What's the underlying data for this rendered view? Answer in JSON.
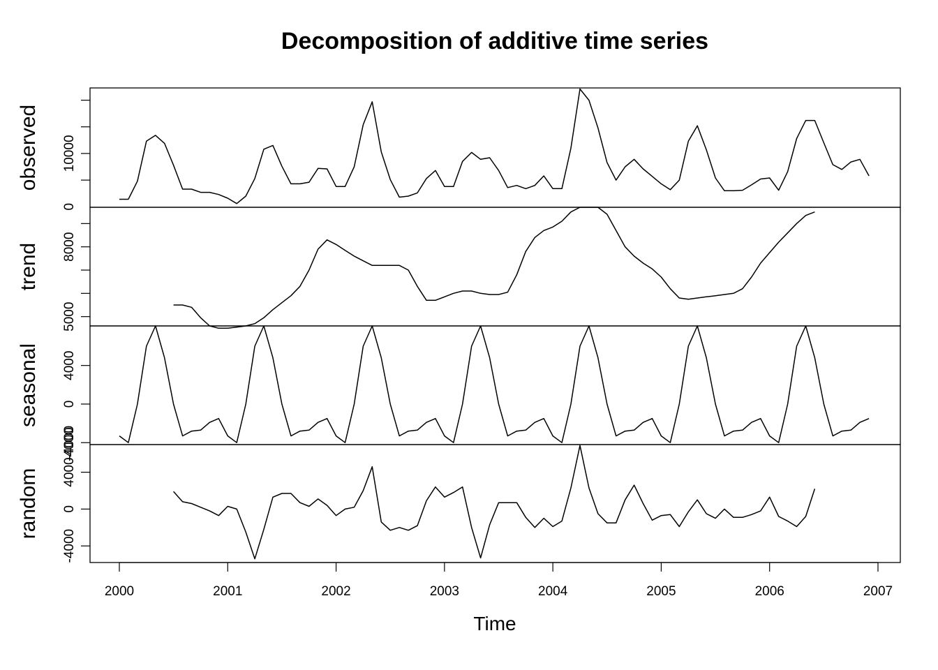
{
  "chart_data": {
    "type": "line",
    "title": "Decomposition of additive time series",
    "xlabel": "Time",
    "xlim": [
      2000,
      2007
    ],
    "x_ticks": [
      2000,
      2001,
      2002,
      2003,
      2004,
      2005,
      2006,
      2007
    ],
    "x_tick_labels": [
      "2000",
      "2001",
      "2002",
      "2003",
      "2004",
      "2005",
      "2006",
      "2007"
    ],
    "x_start": 2000,
    "frequency": 12,
    "grid": false,
    "legend": "none",
    "panels": [
      {
        "name": "observed",
        "ylim": [
          -100,
          22300
        ],
        "y_ticks": [
          0,
          10000
        ],
        "y_tick_labels": [
          "0",
          "10000"
        ],
        "values": [
          1400,
          1400,
          4800,
          12300,
          13400,
          11900,
          7800,
          3300,
          3300,
          2700,
          2700,
          2300,
          1600,
          600,
          2000,
          5300,
          10800,
          11500,
          7600,
          4300,
          4300,
          4600,
          7200,
          7100,
          3800,
          3800,
          7500,
          15400,
          19700,
          10300,
          5100,
          1800,
          2000,
          2600,
          5300,
          6800,
          3800,
          3800,
          8500,
          10200,
          8900,
          9200,
          6800,
          3600,
          4000,
          3400,
          4000,
          5800,
          3400,
          3400,
          11000,
          22100,
          20000,
          14800,
          8300,
          5000,
          7500,
          8900,
          7100,
          5700,
          4300,
          3200,
          5000,
          12300,
          15200,
          10700,
          5400,
          3000,
          3000,
          3100,
          4100,
          5200,
          5400,
          3100,
          6600,
          12800,
          16200,
          16200,
          12000,
          7900,
          7000,
          8400,
          8900,
          5800
        ]
      },
      {
        "name": "trend",
        "ylim": [
          4600,
          9700
        ],
        "y_ticks": [
          5000,
          8000
        ],
        "y_tick_labels": [
          "5000",
          "8000"
        ],
        "values": [
          null,
          null,
          null,
          null,
          null,
          null,
          5500,
          5500,
          5400,
          4950,
          4600,
          4500,
          4500,
          4550,
          4600,
          4700,
          4950,
          5300,
          5600,
          5900,
          6300,
          7000,
          7900,
          8300,
          8100,
          7850,
          7600,
          7400,
          7200,
          7200,
          7200,
          7200,
          7000,
          6300,
          5700,
          5700,
          5850,
          6000,
          6100,
          6100,
          6000,
          5950,
          5950,
          6050,
          6800,
          7800,
          8400,
          8700,
          8850,
          9100,
          9500,
          9700,
          9700,
          9700,
          9400,
          8700,
          8000,
          7600,
          7300,
          7050,
          6700,
          6200,
          5800,
          5750,
          5800,
          5850,
          5900,
          5950,
          6000,
          6200,
          6700,
          7300,
          7750,
          8200,
          8600,
          9000,
          9350,
          9500,
          null,
          null,
          null,
          null,
          null,
          null
        ]
      },
      {
        "name": "seasonal",
        "ylim": [
          -4200,
          8100
        ],
        "y_ticks": [
          -4000,
          0,
          4000
        ],
        "y_tick_labels": [
          "-4000",
          "0",
          "4000"
        ],
        "values": [
          -3300,
          -4000,
          0,
          6000,
          8100,
          4800,
          0,
          -3300,
          -2800,
          -2700,
          -1900,
          -1500,
          -3300,
          -4000,
          0,
          6000,
          8100,
          4800,
          0,
          -3300,
          -2800,
          -2700,
          -1900,
          -1500,
          -3300,
          -4000,
          0,
          6000,
          8100,
          4800,
          0,
          -3300,
          -2800,
          -2700,
          -1900,
          -1500,
          -3300,
          -4000,
          0,
          6000,
          8100,
          4800,
          0,
          -3300,
          -2800,
          -2700,
          -1900,
          -1500,
          -3300,
          -4000,
          0,
          6000,
          8100,
          4800,
          0,
          -3300,
          -2800,
          -2700,
          -1900,
          -1500,
          -3300,
          -4000,
          0,
          6000,
          8100,
          4800,
          0,
          -3300,
          -2800,
          -2700,
          -1900,
          -1500,
          -3300,
          -4000,
          0,
          6000,
          8100,
          4800,
          0,
          -3300,
          -2800,
          -2700,
          -1900,
          -1500
        ]
      },
      {
        "name": "random",
        "ylim": [
          -5800,
          7000
        ],
        "y_ticks": [
          -4000,
          0,
          4000
        ],
        "y_tick_labels": [
          "-4000",
          "0",
          "4000"
        ],
        "extra_tick": -4000,
        "values": [
          null,
          null,
          null,
          null,
          null,
          null,
          1900,
          800,
          600,
          200,
          -200,
          -700,
          300,
          0,
          -2500,
          -5400,
          -2200,
          1300,
          1700,
          1700,
          700,
          300,
          1100,
          400,
          -700,
          0,
          200,
          2000,
          4600,
          -1400,
          -2300,
          -2000,
          -2300,
          -1800,
          900,
          2400,
          1300,
          1800,
          2400,
          -2000,
          -5300,
          -1700,
          700,
          700,
          700,
          -900,
          -2000,
          -1000,
          -1900,
          -1300,
          2300,
          6900,
          2300,
          -500,
          -1500,
          -1500,
          1000,
          2600,
          600,
          -1200,
          -700,
          -600,
          -1900,
          -300,
          1000,
          -500,
          -1000,
          0,
          -900,
          -900,
          -600,
          -200,
          1300,
          -800,
          -1300,
          -1900,
          -800,
          2200,
          null,
          null,
          null,
          null,
          null,
          null
        ]
      }
    ]
  }
}
